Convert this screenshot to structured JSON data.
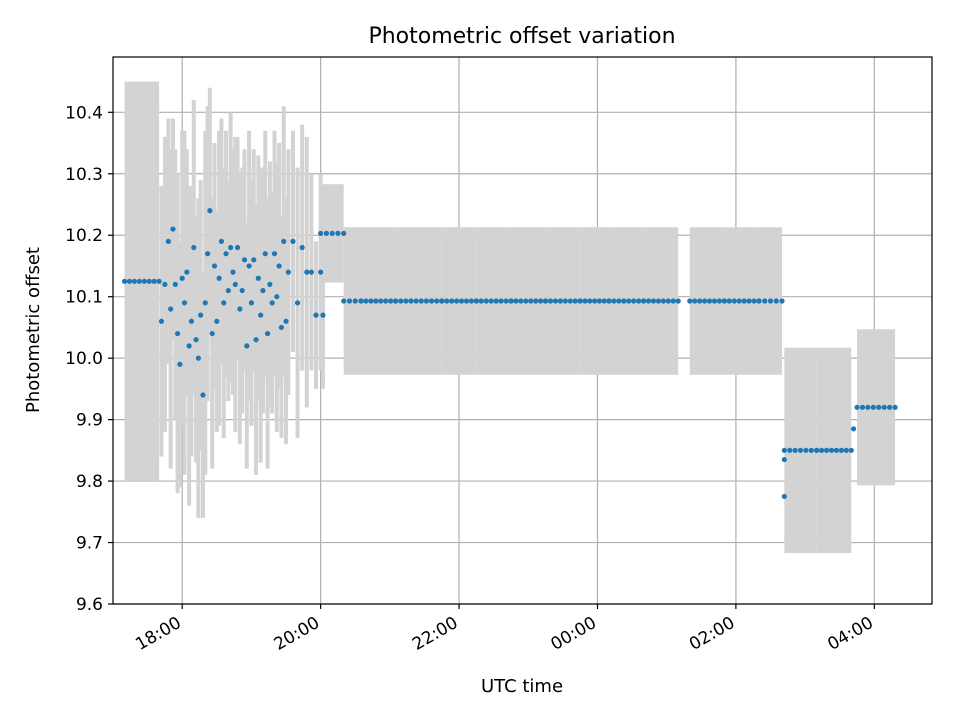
{
  "chart_data": {
    "type": "scatter",
    "title": "Photometric offset variation",
    "xlabel": "UTC time",
    "ylabel": "Photometric offset",
    "grid": true,
    "x_units": "UTC time (HH:MM)",
    "x_ticks": [
      "18:00",
      "20:00",
      "22:00",
      "00:00",
      "02:00",
      "04:00"
    ],
    "y_ticks": [
      "9.6",
      "9.7",
      "9.8",
      "9.9",
      "10.0",
      "10.1",
      "10.2",
      "10.3",
      "10.4"
    ],
    "ylim": [
      9.6,
      10.49
    ],
    "xlim": [
      "17:00",
      "04:50"
    ],
    "colors": {
      "points": "#1f77b4",
      "errorbars": "#d3d3d3",
      "grid": "#b0b0b0",
      "axes": "#000000"
    },
    "segments": [
      {
        "x_start": "17:10",
        "x_end": "17:40",
        "y": 10.125,
        "err": 0.325
      },
      {
        "x_start": "20:00",
        "x_end": "20:20",
        "y": 10.203,
        "err": 0.08
      },
      {
        "x_start": "20:20",
        "x_end": "20:35",
        "y": 10.093,
        "err": 0.12
      },
      {
        "x_start": "20:35",
        "x_end": "21:05",
        "y": 10.093,
        "err": 0.12
      },
      {
        "x_start": "21:05",
        "x_end": "21:45",
        "y": 10.093,
        "err": 0.12
      },
      {
        "x_start": "21:45",
        "x_end": "22:15",
        "y": 10.093,
        "err": 0.12
      },
      {
        "x_start": "22:15",
        "x_end": "22:45",
        "y": 10.093,
        "err": 0.12
      },
      {
        "x_start": "22:45",
        "x_end": "23:15",
        "y": 10.093,
        "err": 0.12
      },
      {
        "x_start": "23:15",
        "x_end": "23:45",
        "y": 10.093,
        "err": 0.12
      },
      {
        "x_start": "23:45",
        "x_end": "00:10",
        "y": 10.093,
        "err": 0.12
      },
      {
        "x_start": "00:10",
        "x_end": "00:40",
        "y": 10.093,
        "err": 0.12
      },
      {
        "x_start": "00:40",
        "x_end": "01:10",
        "y": 10.093,
        "err": 0.12
      },
      {
        "x_start": "01:20",
        "x_end": "01:50",
        "y": 10.093,
        "err": 0.12
      },
      {
        "x_start": "01:50",
        "x_end": "02:20",
        "y": 10.093,
        "err": 0.12
      },
      {
        "x_start": "02:20",
        "x_end": "02:40",
        "y": 10.093,
        "err": 0.12
      },
      {
        "x_start": "02:42",
        "x_end": "03:10",
        "y": 9.85,
        "err": 0.167
      },
      {
        "x_start": "03:10",
        "x_end": "03:40",
        "y": 9.85,
        "err": 0.167
      },
      {
        "x_start": "03:45",
        "x_end": "04:18",
        "y": 9.92,
        "err": 0.127
      }
    ],
    "scattered": [
      {
        "x": "17:42",
        "y": 10.06,
        "err": 0.22
      },
      {
        "x": "17:45",
        "y": 10.12,
        "err": 0.24
      },
      {
        "x": "17:48",
        "y": 10.19,
        "err": 0.2
      },
      {
        "x": "17:50",
        "y": 10.08,
        "err": 0.26
      },
      {
        "x": "17:52",
        "y": 10.21,
        "err": 0.18
      },
      {
        "x": "17:54",
        "y": 10.12,
        "err": 0.22
      },
      {
        "x": "17:56",
        "y": 10.04,
        "err": 0.26
      },
      {
        "x": "17:58",
        "y": 9.99,
        "err": 0.2
      },
      {
        "x": "18:00",
        "y": 10.13,
        "err": 0.24
      },
      {
        "x": "18:02",
        "y": 10.09,
        "err": 0.28
      },
      {
        "x": "18:04",
        "y": 10.14,
        "err": 0.2
      },
      {
        "x": "18:06",
        "y": 10.02,
        "err": 0.26
      },
      {
        "x": "18:08",
        "y": 10.06,
        "err": 0.22
      },
      {
        "x": "18:10",
        "y": 10.18,
        "err": 0.24
      },
      {
        "x": "18:12",
        "y": 10.03,
        "err": 0.2
      },
      {
        "x": "18:14",
        "y": 10.0,
        "err": 0.26
      },
      {
        "x": "18:16",
        "y": 10.07,
        "err": 0.22
      },
      {
        "x": "18:18",
        "y": 9.94,
        "err": 0.2
      },
      {
        "x": "18:20",
        "y": 10.09,
        "err": 0.28
      },
      {
        "x": "18:22",
        "y": 10.17,
        "err": 0.24
      },
      {
        "x": "18:24",
        "y": 10.24,
        "err": 0.2
      },
      {
        "x": "18:26",
        "y": 10.04,
        "err": 0.22
      },
      {
        "x": "18:28",
        "y": 10.15,
        "err": 0.2
      },
      {
        "x": "18:30",
        "y": 10.06,
        "err": 0.18
      },
      {
        "x": "18:32",
        "y": 10.13,
        "err": 0.24
      },
      {
        "x": "18:34",
        "y": 10.19,
        "err": 0.2
      },
      {
        "x": "18:36",
        "y": 10.09,
        "err": 0.22
      },
      {
        "x": "18:38",
        "y": 10.17,
        "err": 0.2
      },
      {
        "x": "18:40",
        "y": 10.11,
        "err": 0.18
      },
      {
        "x": "18:42",
        "y": 10.18,
        "err": 0.22
      },
      {
        "x": "18:44",
        "y": 10.14,
        "err": 0.2
      },
      {
        "x": "18:46",
        "y": 10.12,
        "err": 0.24
      },
      {
        "x": "18:48",
        "y": 10.18,
        "err": 0.18
      },
      {
        "x": "18:50",
        "y": 10.08,
        "err": 0.22
      },
      {
        "x": "18:52",
        "y": 10.11,
        "err": 0.2
      },
      {
        "x": "18:54",
        "y": 10.16,
        "err": 0.18
      },
      {
        "x": "18:56",
        "y": 10.02,
        "err": 0.2
      },
      {
        "x": "18:58",
        "y": 10.15,
        "err": 0.22
      },
      {
        "x": "19:00",
        "y": 10.09,
        "err": 0.2
      },
      {
        "x": "19:02",
        "y": 10.16,
        "err": 0.18
      },
      {
        "x": "19:04",
        "y": 10.03,
        "err": 0.22
      },
      {
        "x": "19:06",
        "y": 10.13,
        "err": 0.2
      },
      {
        "x": "19:08",
        "y": 10.07,
        "err": 0.24
      },
      {
        "x": "19:10",
        "y": 10.11,
        "err": 0.2
      },
      {
        "x": "19:12",
        "y": 10.17,
        "err": 0.2
      },
      {
        "x": "19:14",
        "y": 10.04,
        "err": 0.22
      },
      {
        "x": "19:16",
        "y": 10.12,
        "err": 0.2
      },
      {
        "x": "19:18",
        "y": 10.09,
        "err": 0.18
      },
      {
        "x": "19:20",
        "y": 10.17,
        "err": 0.2
      },
      {
        "x": "19:22",
        "y": 10.1,
        "err": 0.22
      },
      {
        "x": "19:24",
        "y": 10.15,
        "err": 0.2
      },
      {
        "x": "19:26",
        "y": 10.05,
        "err": 0.18
      },
      {
        "x": "19:28",
        "y": 10.19,
        "err": 0.22
      },
      {
        "x": "19:30",
        "y": 10.06,
        "err": 0.2
      },
      {
        "x": "19:32",
        "y": 10.14,
        "err": 0.2
      },
      {
        "x": "19:36",
        "y": 10.19,
        "err": 0.18
      },
      {
        "x": "19:40",
        "y": 10.09,
        "err": 0.22
      },
      {
        "x": "19:44",
        "y": 10.18,
        "err": 0.2
      },
      {
        "x": "19:48",
        "y": 10.14,
        "err": 0.22
      },
      {
        "x": "19:52",
        "y": 10.14,
        "err": 0.16
      },
      {
        "x": "19:56",
        "y": 10.07,
        "err": 0.12
      },
      {
        "x": "20:00",
        "y": 10.14,
        "err": 0.16
      },
      {
        "x": "20:02",
        "y": 10.07,
        "err": 0.12
      }
    ],
    "outliers": [
      {
        "x": "02:42",
        "y": 9.835
      },
      {
        "x": "02:42",
        "y": 9.775
      },
      {
        "x": "03:42",
        "y": 9.885
      }
    ]
  }
}
